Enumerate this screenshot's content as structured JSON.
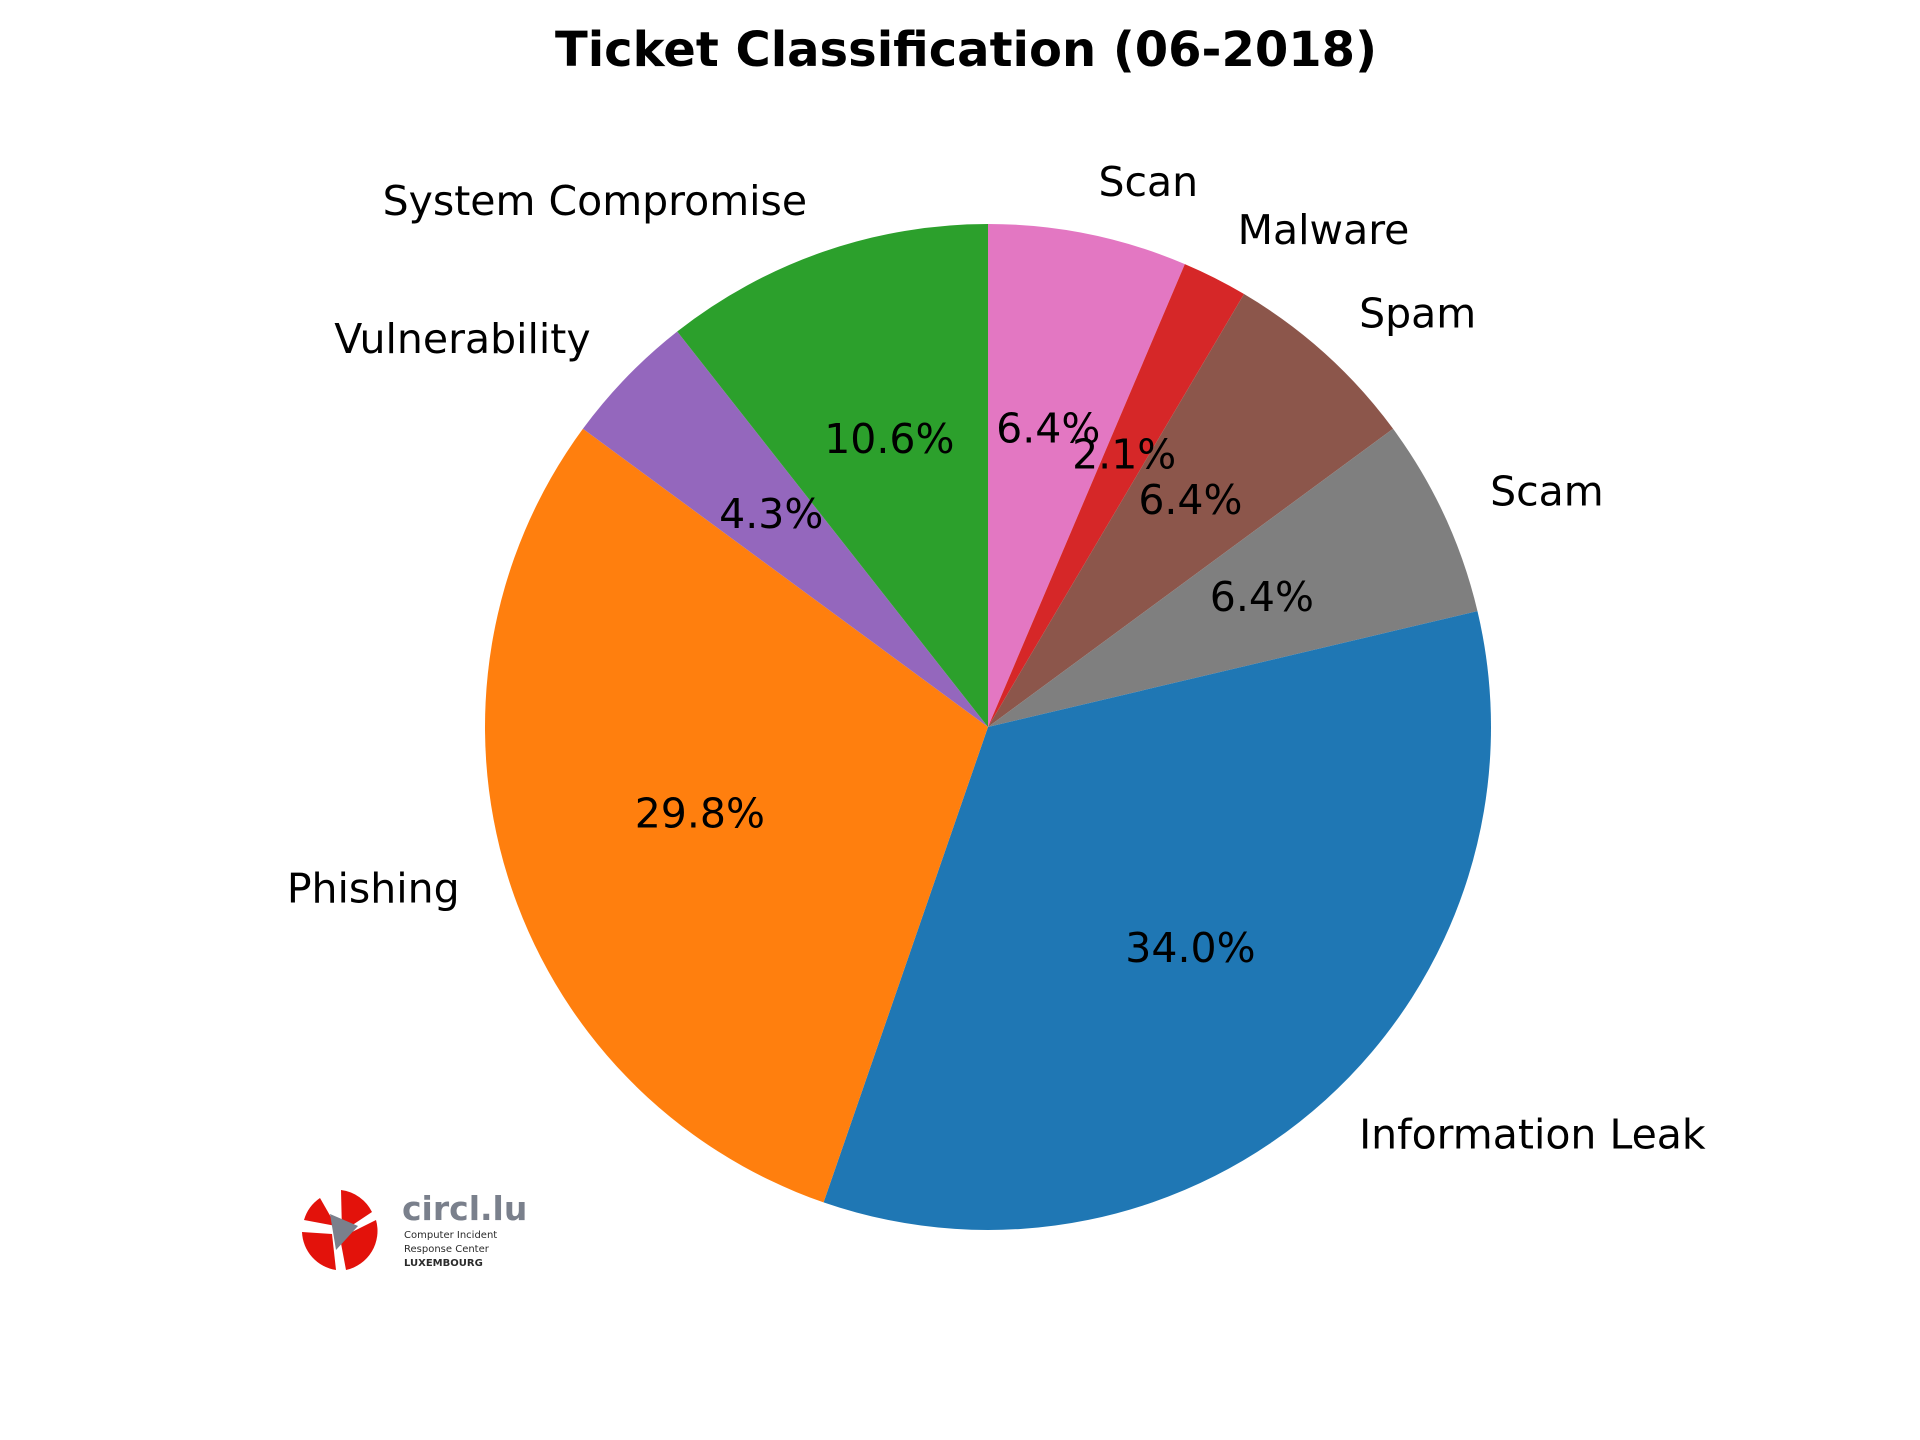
{
  "chart_data": {
    "type": "pie",
    "title": "Ticket Classification (06-2018)",
    "start_angle_deg": 90,
    "direction": "clockwise",
    "slices": [
      {
        "label": "Scan",
        "value": 6.4,
        "pct_label": "6.4%",
        "color": "#e377c2"
      },
      {
        "label": "Malware",
        "value": 2.1,
        "pct_label": "2.1%",
        "color": "#d62728"
      },
      {
        "label": "Spam",
        "value": 6.4,
        "pct_label": "6.4%",
        "color": "#8c564b"
      },
      {
        "label": "Scam",
        "value": 6.4,
        "pct_label": "6.4%",
        "color": "#7f7f7f"
      },
      {
        "label": "Information Leak",
        "value": 34.0,
        "pct_label": "34.0%",
        "color": "#1f77b4"
      },
      {
        "label": "Phishing",
        "value": 29.8,
        "pct_label": "29.8%",
        "color": "#ff7f0e"
      },
      {
        "label": "Vulnerability",
        "value": 4.3,
        "pct_label": "4.3%",
        "color": "#9467bd"
      },
      {
        "label": "System Compromise",
        "value": 10.6,
        "pct_label": "10.6%",
        "color": "#2ca02c"
      }
    ]
  },
  "logo": {
    "name": "circl.lu",
    "line1": "Computer Incident",
    "line2": "Response Center",
    "line3": "LUXEMBOURG",
    "color_red": "#e3120b",
    "color_gray": "#7a808c"
  }
}
